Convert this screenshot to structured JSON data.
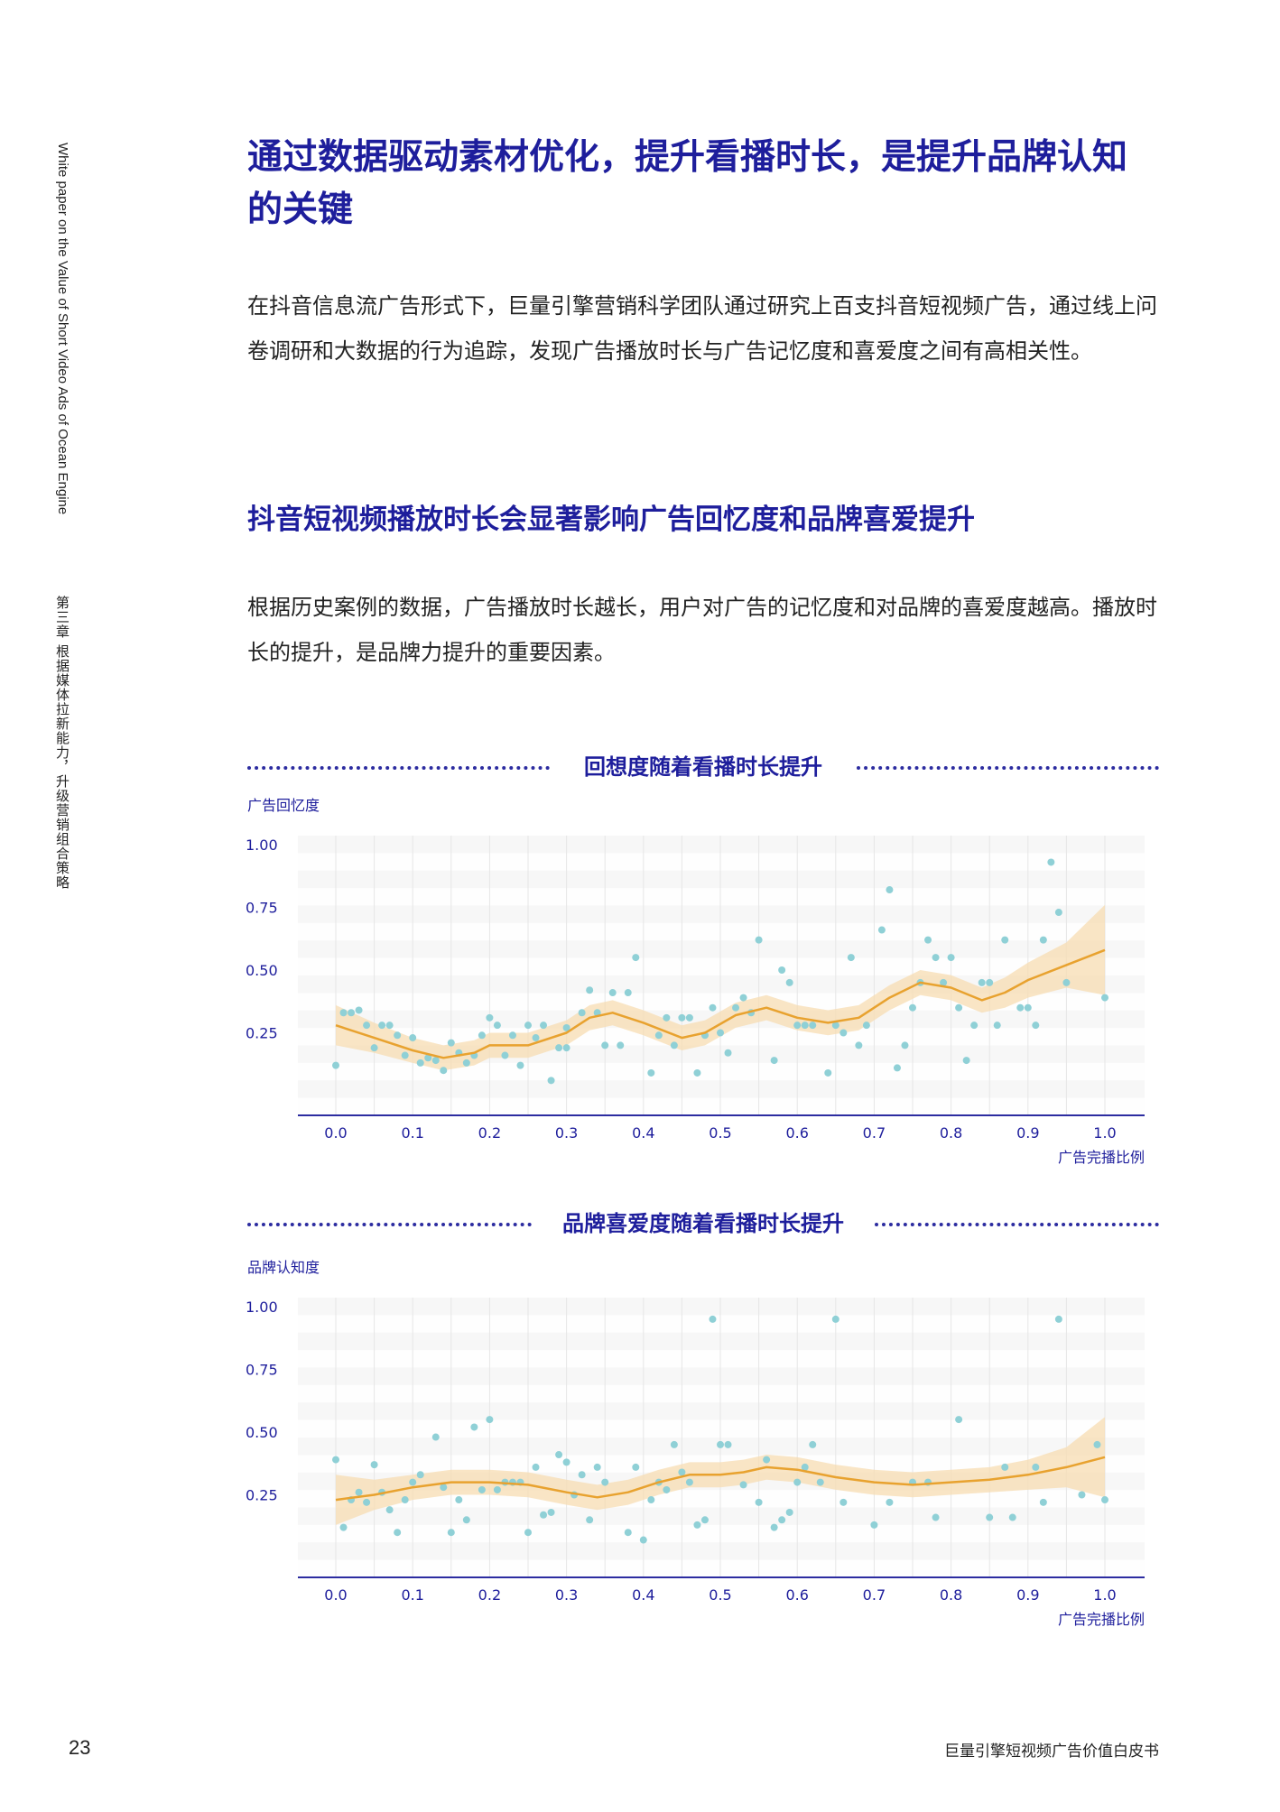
{
  "sidebar": {
    "english": "White paper on the Value of Short Video Ads of Ocean Engine",
    "chapter": "第三章  根据媒体拉新能力，升级营销组合策略"
  },
  "heading": "通过数据驱动素材优化，提升看播时长，是提升品牌认知的关键",
  "intro": "在抖音信息流广告形式下，巨量引擎营销科学团队通过研究上百支抖音短视频广告，通过线上问卷调研和大数据的行为追踪，发现广告播放时长与广告记忆度和喜爱度之间有高相关性。",
  "subheading": "抖音短视频播放时长会显著影响广告回忆度和品牌喜爱提升",
  "body": "根据历史案例的数据，广告播放时长越长，用户对广告的记忆度和对品牌的喜爱度越高。播放时长的提升，是品牌力提升的重要因素。",
  "colors": {
    "accent": "#1e1e9c",
    "point": "#8fd0d6",
    "trend": "#e8a22f",
    "band": "#f7dcb2",
    "axis": "#2c2ca0"
  },
  "chart_data": [
    {
      "type": "scatter",
      "title": "回想度随着看播时长提升",
      "ylabel": "广告回忆度",
      "xlabel": "广告完播比例",
      "xlim": [
        0,
        1
      ],
      "ylim": [
        0,
        1
      ],
      "xticks": [
        "0.0",
        "0.1",
        "0.2",
        "0.3",
        "0.4",
        "0.5",
        "0.6",
        "0.7",
        "0.8",
        "0.9",
        "1.0"
      ],
      "yticks": [
        "0.25",
        "0.50",
        "0.75",
        "1.00"
      ],
      "grid": true,
      "points": [
        [
          0,
          0.12
        ],
        [
          0.01,
          0.33
        ],
        [
          0.02,
          0.33
        ],
        [
          0.03,
          0.34
        ],
        [
          0.04,
          0.28
        ],
        [
          0.05,
          0.19
        ],
        [
          0.06,
          0.28
        ],
        [
          0.07,
          0.28
        ],
        [
          0.08,
          0.24
        ],
        [
          0.09,
          0.16
        ],
        [
          0.1,
          0.23
        ],
        [
          0.11,
          0.13
        ],
        [
          0.12,
          0.15
        ],
        [
          0.13,
          0.14
        ],
        [
          0.14,
          0.1
        ],
        [
          0.15,
          0.21
        ],
        [
          0.16,
          0.17
        ],
        [
          0.17,
          0.13
        ],
        [
          0.18,
          0.16
        ],
        [
          0.19,
          0.24
        ],
        [
          0.2,
          0.31
        ],
        [
          0.21,
          0.28
        ],
        [
          0.22,
          0.16
        ],
        [
          0.23,
          0.24
        ],
        [
          0.24,
          0.12
        ],
        [
          0.25,
          0.28
        ],
        [
          0.26,
          0.23
        ],
        [
          0.27,
          0.28
        ],
        [
          0.28,
          0.06
        ],
        [
          0.29,
          0.19
        ],
        [
          0.3,
          0.19
        ],
        [
          0.3,
          0.27
        ],
        [
          0.32,
          0.33
        ],
        [
          0.33,
          0.42
        ],
        [
          0.34,
          0.33
        ],
        [
          0.35,
          0.2
        ],
        [
          0.36,
          0.41
        ],
        [
          0.37,
          0.2
        ],
        [
          0.38,
          0.41
        ],
        [
          0.39,
          0.55
        ],
        [
          0.41,
          0.09
        ],
        [
          0.42,
          0.24
        ],
        [
          0.43,
          0.31
        ],
        [
          0.44,
          0.2
        ],
        [
          0.45,
          0.31
        ],
        [
          0.46,
          0.31
        ],
        [
          0.47,
          0.09
        ],
        [
          0.48,
          0.24
        ],
        [
          0.49,
          0.35
        ],
        [
          0.5,
          0.25
        ],
        [
          0.51,
          0.17
        ],
        [
          0.52,
          0.35
        ],
        [
          0.53,
          0.39
        ],
        [
          0.54,
          0.33
        ],
        [
          0.55,
          0.62
        ],
        [
          0.57,
          0.14
        ],
        [
          0.58,
          0.5
        ],
        [
          0.59,
          0.45
        ],
        [
          0.6,
          0.28
        ],
        [
          0.61,
          0.28
        ],
        [
          0.62,
          0.28
        ],
        [
          0.64,
          0.09
        ],
        [
          0.65,
          0.28
        ],
        [
          0.66,
          0.25
        ],
        [
          0.67,
          0.55
        ],
        [
          0.68,
          0.2
        ],
        [
          0.69,
          0.28
        ],
        [
          0.71,
          0.66
        ],
        [
          0.72,
          0.82
        ],
        [
          0.73,
          0.11
        ],
        [
          0.74,
          0.2
        ],
        [
          0.75,
          0.35
        ],
        [
          0.76,
          0.45
        ],
        [
          0.77,
          0.62
        ],
        [
          0.78,
          0.55
        ],
        [
          0.79,
          0.45
        ],
        [
          0.8,
          0.55
        ],
        [
          0.81,
          0.35
        ],
        [
          0.82,
          0.14
        ],
        [
          0.83,
          0.28
        ],
        [
          0.84,
          0.45
        ],
        [
          0.85,
          0.45
        ],
        [
          0.86,
          0.28
        ],
        [
          0.87,
          0.62
        ],
        [
          0.89,
          0.35
        ],
        [
          0.9,
          0.35
        ],
        [
          0.91,
          0.28
        ],
        [
          0.92,
          0.62
        ],
        [
          0.93,
          0.93
        ],
        [
          0.94,
          0.73
        ],
        [
          0.95,
          0.45
        ],
        [
          1.0,
          0.39
        ]
      ],
      "trend": [
        [
          0,
          0.28
        ],
        [
          0.05,
          0.23
        ],
        [
          0.1,
          0.18
        ],
        [
          0.14,
          0.15
        ],
        [
          0.18,
          0.17
        ],
        [
          0.2,
          0.2
        ],
        [
          0.25,
          0.2
        ],
        [
          0.3,
          0.25
        ],
        [
          0.33,
          0.31
        ],
        [
          0.36,
          0.33
        ],
        [
          0.4,
          0.29
        ],
        [
          0.45,
          0.23
        ],
        [
          0.48,
          0.25
        ],
        [
          0.52,
          0.32
        ],
        [
          0.56,
          0.35
        ],
        [
          0.6,
          0.31
        ],
        [
          0.64,
          0.29
        ],
        [
          0.68,
          0.31
        ],
        [
          0.72,
          0.39
        ],
        [
          0.76,
          0.45
        ],
        [
          0.8,
          0.43
        ],
        [
          0.84,
          0.38
        ],
        [
          0.87,
          0.41
        ],
        [
          0.9,
          0.46
        ],
        [
          0.95,
          0.52
        ],
        [
          1.0,
          0.58
        ]
      ],
      "band": [
        0.08,
        0.06,
        0.05,
        0.05,
        0.05,
        0.05,
        0.05,
        0.05,
        0.05,
        0.05,
        0.05,
        0.05,
        0.05,
        0.05,
        0.05,
        0.05,
        0.05,
        0.05,
        0.05,
        0.05,
        0.05,
        0.05,
        0.06,
        0.07,
        0.09,
        0.18
      ]
    },
    {
      "type": "scatter",
      "title": "品牌喜爱度随着看播时长提升",
      "ylabel": "品牌认知度",
      "xlabel": "广告完播比例",
      "xlim": [
        0,
        1
      ],
      "ylim": [
        0,
        1
      ],
      "xticks": [
        "0.0",
        "0.1",
        "0.2",
        "0.3",
        "0.4",
        "0.5",
        "0.6",
        "0.7",
        "0.8",
        "0.9",
        "1.0"
      ],
      "yticks": [
        "0.25",
        "0.50",
        "0.75",
        "1.00"
      ],
      "grid": true,
      "points": [
        [
          0,
          0.39
        ],
        [
          0.01,
          0.12
        ],
        [
          0.02,
          0.23
        ],
        [
          0.03,
          0.26
        ],
        [
          0.04,
          0.22
        ],
        [
          0.05,
          0.37
        ],
        [
          0.06,
          0.26
        ],
        [
          0.07,
          0.19
        ],
        [
          0.08,
          0.1
        ],
        [
          0.09,
          0.23
        ],
        [
          0.1,
          0.3
        ],
        [
          0.11,
          0.33
        ],
        [
          0.13,
          0.48
        ],
        [
          0.14,
          0.28
        ],
        [
          0.15,
          0.1
        ],
        [
          0.16,
          0.23
        ],
        [
          0.17,
          0.15
        ],
        [
          0.18,
          0.52
        ],
        [
          0.19,
          0.27
        ],
        [
          0.2,
          0.55
        ],
        [
          0.21,
          0.27
        ],
        [
          0.22,
          0.3
        ],
        [
          0.23,
          0.3
        ],
        [
          0.24,
          0.3
        ],
        [
          0.25,
          0.1
        ],
        [
          0.26,
          0.36
        ],
        [
          0.27,
          0.17
        ],
        [
          0.28,
          0.18
        ],
        [
          0.29,
          0.41
        ],
        [
          0.3,
          0.38
        ],
        [
          0.31,
          0.25
        ],
        [
          0.32,
          0.33
        ],
        [
          0.33,
          0.15
        ],
        [
          0.34,
          0.36
        ],
        [
          0.35,
          0.3
        ],
        [
          0.38,
          0.1
        ],
        [
          0.39,
          0.36
        ],
        [
          0.4,
          0.07
        ],
        [
          0.41,
          0.23
        ],
        [
          0.42,
          0.3
        ],
        [
          0.43,
          0.27
        ],
        [
          0.44,
          0.45
        ],
        [
          0.45,
          0.34
        ],
        [
          0.46,
          0.3
        ],
        [
          0.47,
          0.13
        ],
        [
          0.48,
          0.15
        ],
        [
          0.49,
          0.95
        ],
        [
          0.5,
          0.45
        ],
        [
          0.51,
          0.45
        ],
        [
          0.53,
          0.29
        ],
        [
          0.55,
          0.22
        ],
        [
          0.56,
          0.39
        ],
        [
          0.57,
          0.12
        ],
        [
          0.58,
          0.15
        ],
        [
          0.59,
          0.18
        ],
        [
          0.6,
          0.3
        ],
        [
          0.61,
          0.36
        ],
        [
          0.62,
          0.45
        ],
        [
          0.63,
          0.3
        ],
        [
          0.65,
          0.95
        ],
        [
          0.66,
          0.22
        ],
        [
          0.7,
          0.13
        ],
        [
          0.72,
          0.22
        ],
        [
          0.75,
          0.3
        ],
        [
          0.77,
          0.3
        ],
        [
          0.78,
          0.16
        ],
        [
          0.81,
          0.55
        ],
        [
          0.85,
          0.16
        ],
        [
          0.87,
          0.36
        ],
        [
          0.88,
          0.16
        ],
        [
          0.91,
          0.36
        ],
        [
          0.92,
          0.22
        ],
        [
          0.94,
          0.95
        ],
        [
          0.97,
          0.25
        ],
        [
          0.99,
          0.45
        ],
        [
          1.0,
          0.23
        ]
      ],
      "trend": [
        [
          0,
          0.23
        ],
        [
          0.05,
          0.25
        ],
        [
          0.1,
          0.28
        ],
        [
          0.15,
          0.3
        ],
        [
          0.2,
          0.3
        ],
        [
          0.25,
          0.29
        ],
        [
          0.3,
          0.26
        ],
        [
          0.34,
          0.24
        ],
        [
          0.38,
          0.26
        ],
        [
          0.42,
          0.3
        ],
        [
          0.46,
          0.33
        ],
        [
          0.5,
          0.33
        ],
        [
          0.53,
          0.34
        ],
        [
          0.56,
          0.36
        ],
        [
          0.6,
          0.35
        ],
        [
          0.65,
          0.32
        ],
        [
          0.7,
          0.3
        ],
        [
          0.75,
          0.29
        ],
        [
          0.8,
          0.3
        ],
        [
          0.85,
          0.31
        ],
        [
          0.9,
          0.33
        ],
        [
          0.95,
          0.36
        ],
        [
          1.0,
          0.4
        ]
      ],
      "band": [
        0.1,
        0.06,
        0.05,
        0.05,
        0.05,
        0.05,
        0.05,
        0.05,
        0.05,
        0.05,
        0.05,
        0.05,
        0.05,
        0.05,
        0.05,
        0.05,
        0.05,
        0.05,
        0.05,
        0.05,
        0.06,
        0.08,
        0.16
      ]
    }
  ],
  "page_number": "23",
  "footer": "巨量引擎短视频广告价值白皮书"
}
